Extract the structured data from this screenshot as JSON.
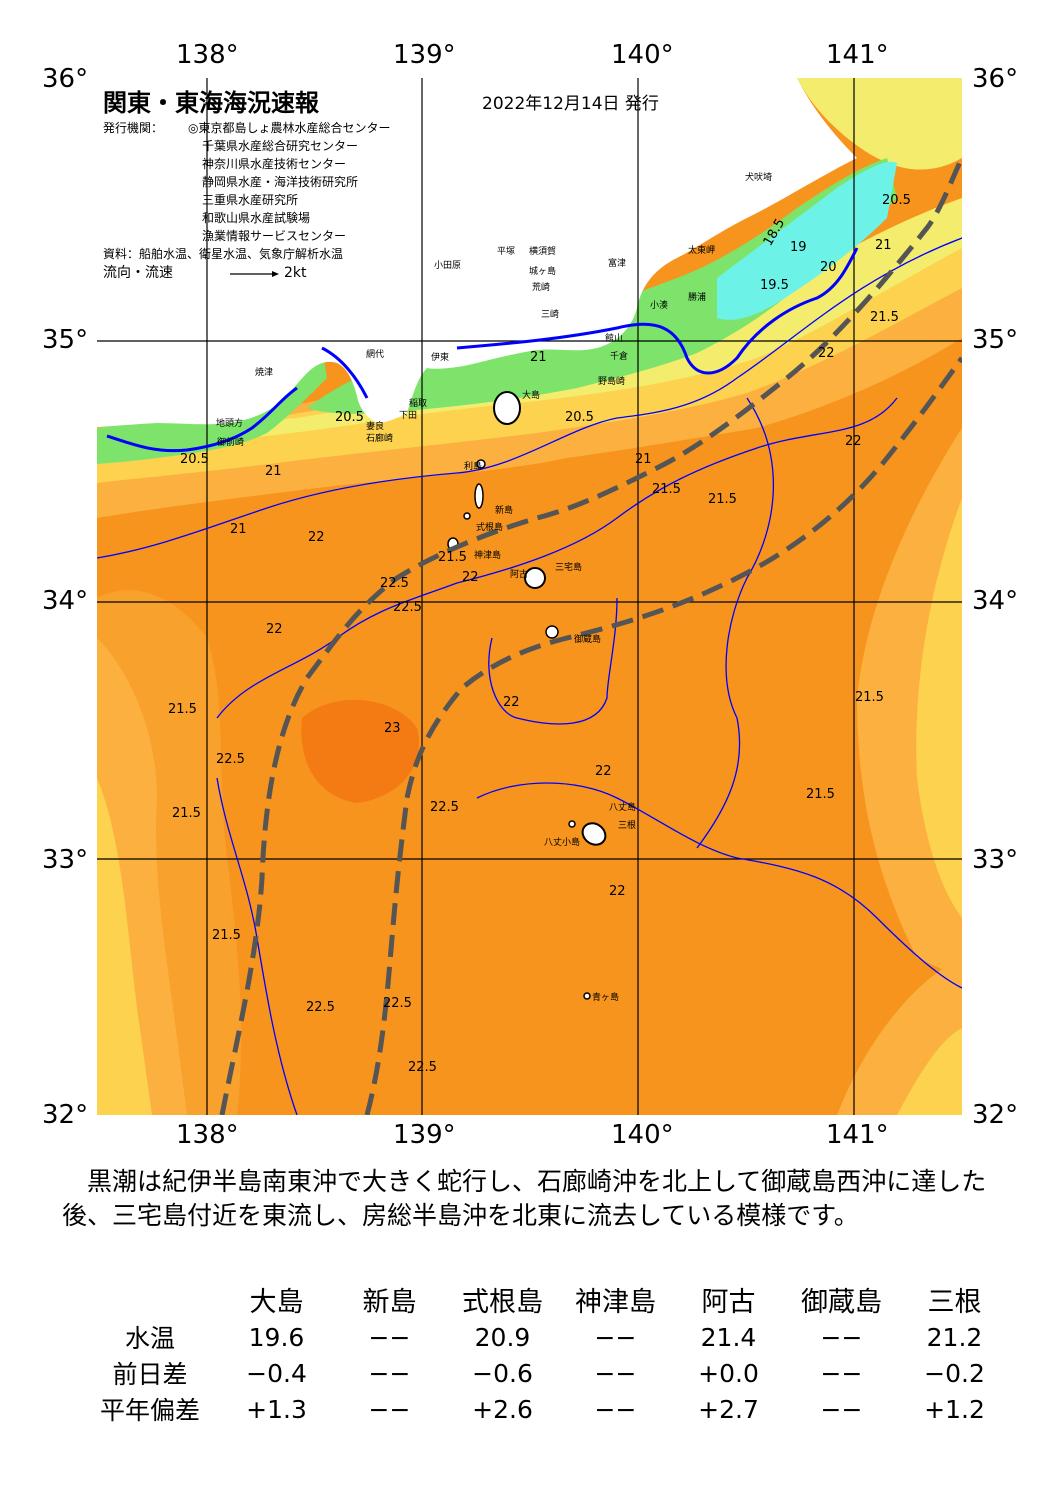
{
  "map": {
    "title": "関東・東海海況速報",
    "date": "2022年12月14日 発行",
    "issuers_label": "発行機関：",
    "issuers": [
      "◎東京都島しょ農林水産総合センター",
      "千葉県水産総合研究センター",
      "神奈川県水産技術センター",
      "静岡県水産・海洋技術研究所",
      "三重県水産研究所",
      "和歌山県水産試験場",
      "漁業情報サービスセンター"
    ],
    "data_source": "資料：船舶水温、衛星水温、気象庁解析水温",
    "flow_legend_label": "流向・流速",
    "flow_legend_value": "2kt",
    "lon_ticks": [
      "138°",
      "139°",
      "140°",
      "141°"
    ],
    "lat_ticks": [
      "36°",
      "35°",
      "34°",
      "33°",
      "32°"
    ],
    "place_names": {
      "inubozaki": "犬吠埼",
      "taitomisaki": "太東岬",
      "odawara": "小田原",
      "hiratsuka": "平塚",
      "yokosuka": "横須賀",
      "futtsu": "富津",
      "jogashima": "城ヶ島",
      "misaki": "三崎",
      "arasaki": "荒崎",
      "kominato": "小湊",
      "katsuura": "勝浦",
      "tateyama": "館山",
      "chikura": "千倉",
      "nojimazaki": "野島崎",
      "ajiro": "網代",
      "ito": "伊東",
      "yaizu": "焼津",
      "omaezaki": "御前崎",
      "jizogashira": "地頭方",
      "mera": "妻良",
      "shimoda": "下田",
      "irozaki": "石廊崎",
      "inatori": "稲取",
      "oshima": "大島",
      "toshima": "利島",
      "niijima": "新島",
      "shikinejima": "式根島",
      "kozushima": "神津島",
      "miyakejima": "三宅島",
      "ako": "阿古",
      "mikurajima": "御蔵島",
      "hachijojima": "八丈島",
      "mitsune": "三根",
      "hachijokojima": "八丈小島",
      "aogashima": "青ヶ島"
    },
    "isotherm_labels": [
      "18.5",
      "19",
      "19.5",
      "20",
      "20.5",
      "21",
      "21.5",
      "22",
      "22.5",
      "23"
    ]
  },
  "summary": "黒潮は紀伊半島南東沖で大きく蛇行し、石廊崎沖を北上して御蔵島西沖に達した後、三宅島付近を東流し、房総半島沖を北東に流去している模様です。",
  "table": {
    "columns": [
      "大島",
      "新島",
      "式根島",
      "神津島",
      "阿古",
      "御蔵島",
      "三根"
    ],
    "rows": [
      {
        "label": "水温",
        "values": [
          "19.6",
          "−−",
          "20.9",
          "−−",
          "21.4",
          "−−",
          "21.2"
        ]
      },
      {
        "label": "前日差",
        "values": [
          "−0.4",
          "−−",
          "−0.6",
          "−−",
          "+0.0",
          "−−",
          "−0.2"
        ]
      },
      {
        "label": "平年偏差",
        "values": [
          "+1.3",
          "−−",
          "+2.6",
          "−−",
          "+2.7",
          "−−",
          "+1.2"
        ]
      }
    ]
  },
  "colors": {
    "warmest": "#f47a14",
    "warm": "#f7941d",
    "mid": "#fbb040",
    "cool": "#fcd85a",
    "cooler": "#f3ec6d",
    "cold_green": "#7de36b",
    "cold_cyan": "#6df2e8",
    "isotherm": "#0000ff",
    "kuroshio_axis": "#555555",
    "land": "#ffffff"
  }
}
